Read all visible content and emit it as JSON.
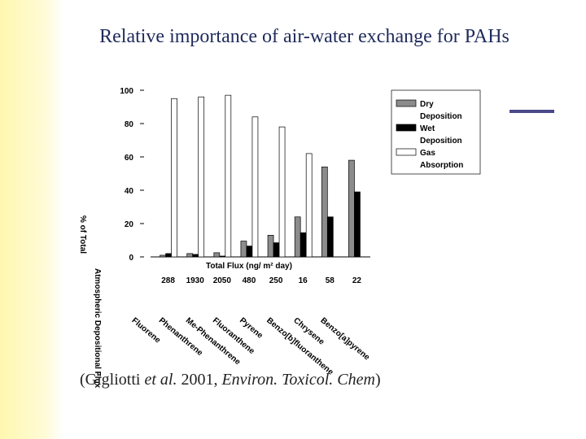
{
  "chart_data": {
    "type": "bar",
    "title": "Relative importance of air-water exchange for PAHs",
    "ylabel": [
      "% of Total",
      "Atmospheric Depositional Flux"
    ],
    "xlabel": "Total Flux (ng/ m² day)",
    "categories": [
      "Fluorene",
      "Phenanthrene",
      "Me-Phenanthrene",
      "Fluoranthene",
      "Pyrene",
      "Benzo[b]fluoranthene",
      "Chrysene",
      "Benzo[a]pyrene"
    ],
    "total_flux": [
      288,
      1930,
      2050,
      480,
      250,
      16,
      58,
      22
    ],
    "series": [
      {
        "name": "Dry Deposition",
        "color": "#8c8c8c",
        "values": [
          1,
          2,
          2.5,
          9.5,
          13,
          24,
          54,
          58
        ]
      },
      {
        "name": "Wet Deposition",
        "color": "#000000",
        "values": [
          2,
          1.5,
          0.5,
          6.5,
          8.5,
          14.5,
          24,
          39
        ]
      },
      {
        "name": "Gas Absorption",
        "color": "#ffffff",
        "values": [
          95,
          96,
          97,
          84,
          78,
          62,
          0,
          0
        ]
      }
    ],
    "ylim": [
      0,
      100
    ],
    "yticks": [
      0,
      20,
      40,
      60,
      80,
      100
    ],
    "grid": false,
    "legend": "upper right"
  },
  "citation": {
    "pre": "(Gigliotti ",
    "etal": "et al.",
    "mid": " 2001, ",
    "journal": "Environ. Toxicol. Chem",
    "post": ")"
  }
}
